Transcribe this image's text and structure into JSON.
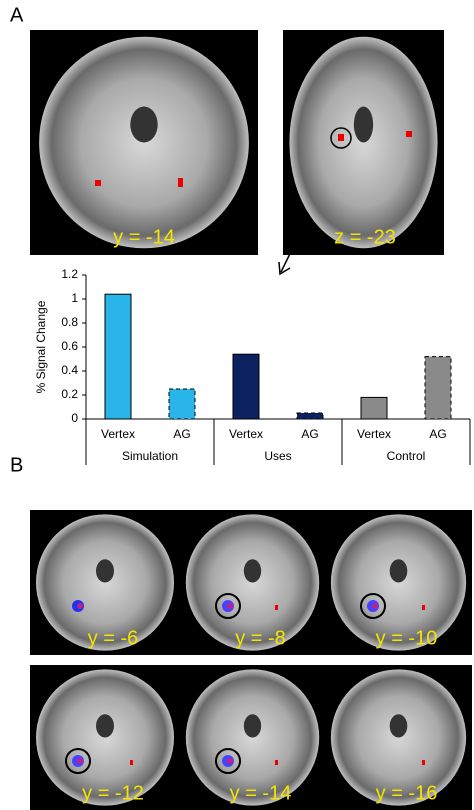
{
  "panel_a": {
    "label": "A",
    "image_labels": [
      "y = -14",
      "z = -23"
    ]
  },
  "chart_data": {
    "type": "bar",
    "y_label": "% Signal Change",
    "categories": [
      "Vertex",
      "AG",
      "Vertex",
      "AG",
      "Vertex",
      "AG"
    ],
    "groups": [
      "Simulation",
      "Uses",
      "Control"
    ],
    "values": [
      1.04,
      0.25,
      0.54,
      0.05,
      0.18,
      0.52
    ],
    "colors": [
      "#29b5ea",
      "#29b5ea",
      "#0b2160",
      "#0b2160",
      "#8a8a8a",
      "#8a8a8a"
    ],
    "dashed": [
      false,
      true,
      false,
      true,
      false,
      true
    ],
    "ylim": [
      0,
      1.2
    ],
    "yticks": [
      0,
      0.2,
      0.4,
      0.6,
      0.8,
      1,
      1.2
    ]
  },
  "panel_b": {
    "label": "B",
    "image_labels": [
      "y = -6",
      "y = -8",
      "y = -10",
      "y = -12",
      "y = -14",
      "y = -16"
    ]
  }
}
